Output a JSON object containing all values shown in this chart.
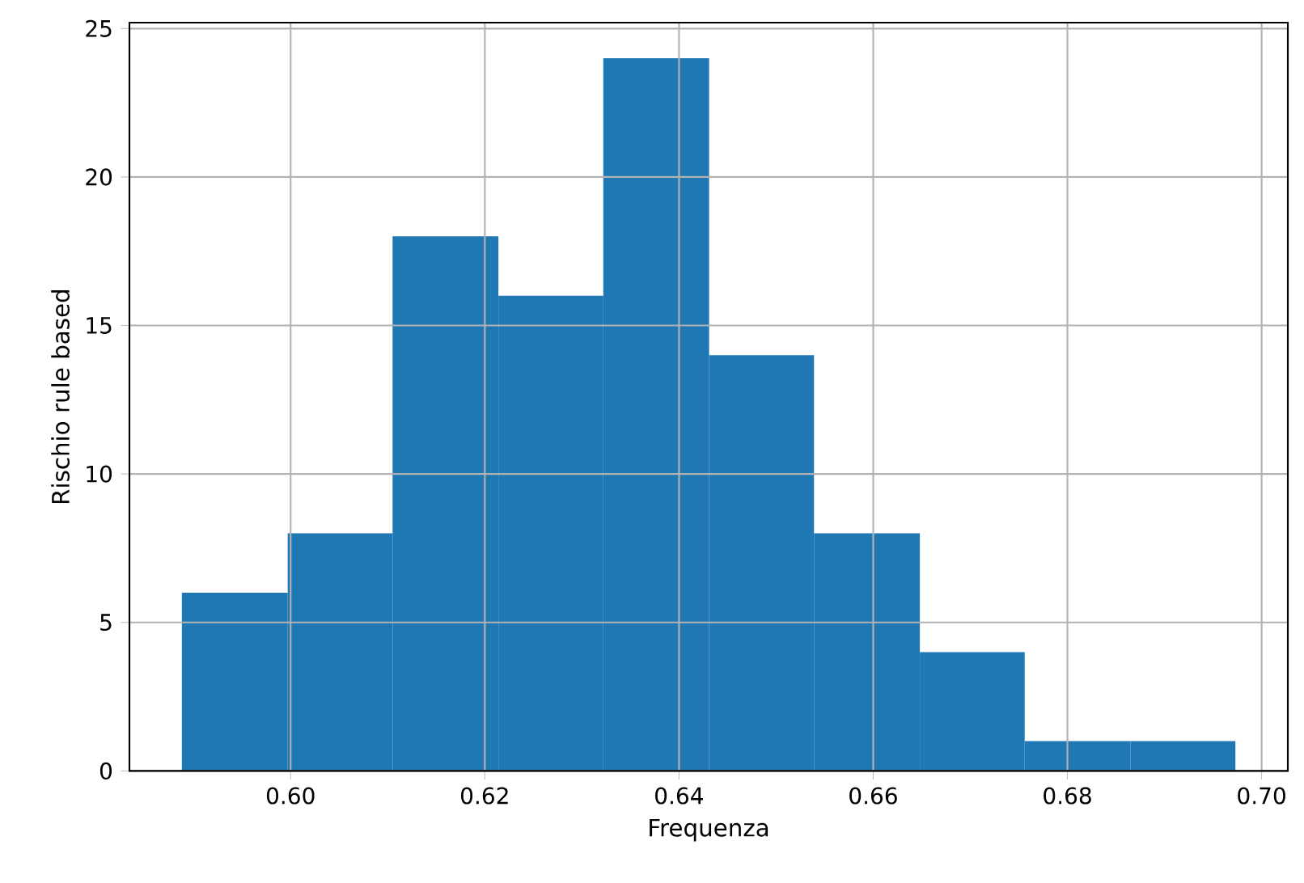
{
  "chart_data": {
    "type": "histogram",
    "xlabel": "Frequenza",
    "ylabel": "Rischio rule based",
    "bins": [
      0.5888,
      0.5997,
      0.6105,
      0.6214,
      0.6322,
      0.6431,
      0.6539,
      0.6648,
      0.6756,
      0.6865,
      0.6973
    ],
    "values": [
      6,
      8,
      18,
      16,
      24,
      14,
      8,
      4,
      1,
      1
    ],
    "color": "#1f77b4",
    "xlim": [
      0.5834,
      0.7027
    ],
    "ylim": [
      0,
      25.2
    ],
    "xticks": [
      {
        "value": 0.6,
        "label": "0.60"
      },
      {
        "value": 0.62,
        "label": "0.62"
      },
      {
        "value": 0.64,
        "label": "0.64"
      },
      {
        "value": 0.66,
        "label": "0.66"
      },
      {
        "value": 0.68,
        "label": "0.68"
      },
      {
        "value": 0.7,
        "label": "0.70"
      }
    ],
    "yticks": [
      0,
      5,
      10,
      15,
      20,
      25
    ],
    "grid": true
  }
}
